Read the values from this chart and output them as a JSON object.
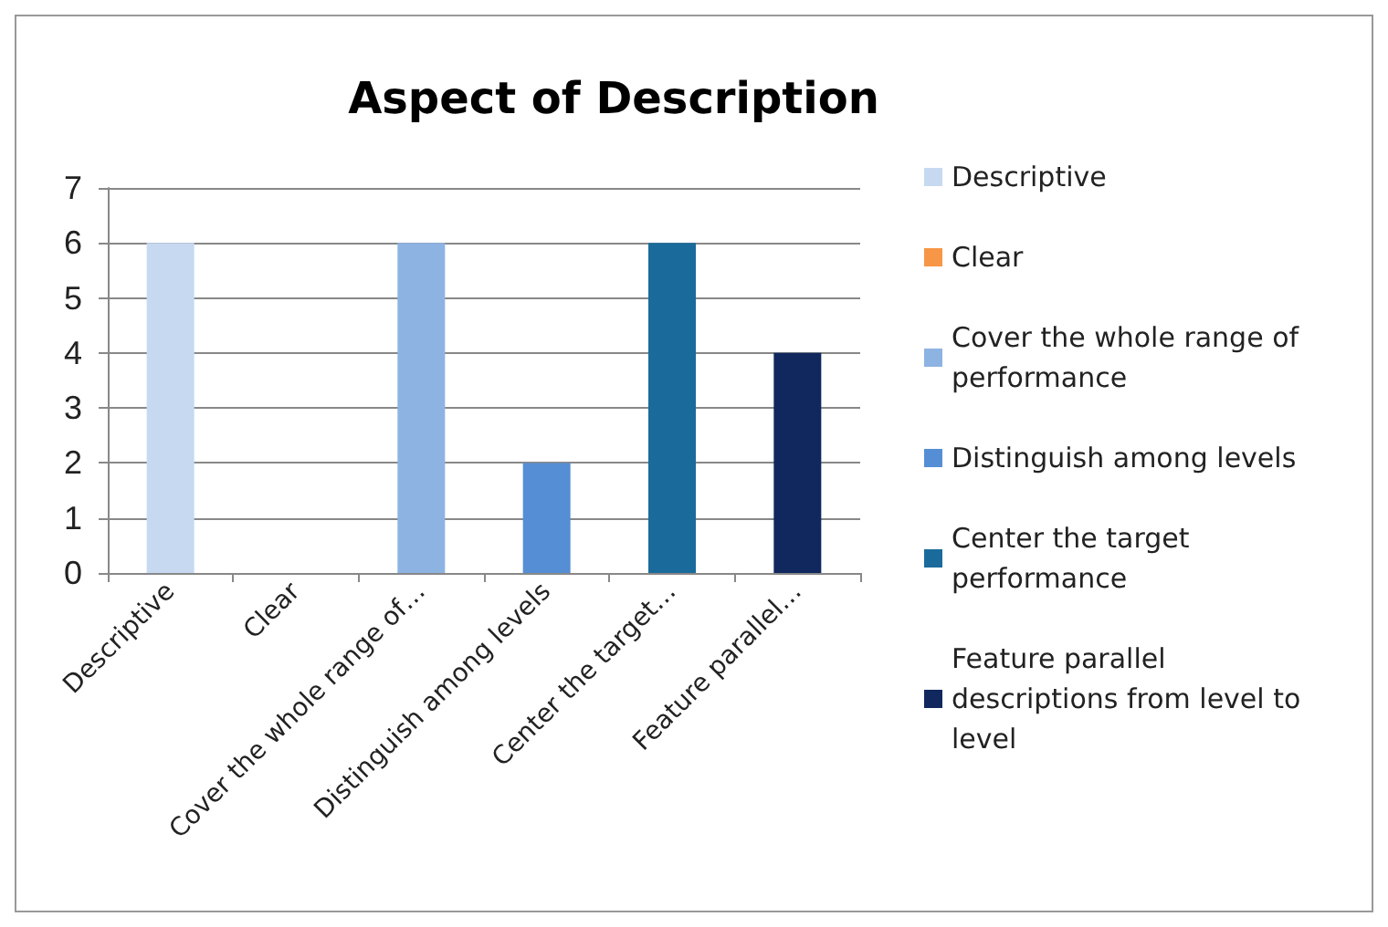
{
  "chart_data": {
    "type": "bar",
    "title": "Aspect of Description",
    "categories": [
      "Descriptive",
      "Clear",
      "Cover the whole range of…",
      "Distinguish among levels",
      "Center the target…",
      "Feature parallel…"
    ],
    "series": [
      {
        "name": "Descriptive",
        "color": "#c6d9f1",
        "values": [
          6,
          null,
          null,
          null,
          null,
          null
        ]
      },
      {
        "name": "Clear",
        "color": "#f79646",
        "values": [
          null,
          0,
          null,
          null,
          null,
          null
        ]
      },
      {
        "name": "Cover the whole range of performance",
        "color": "#8db3e2",
        "values": [
          null,
          null,
          6,
          null,
          null,
          null
        ]
      },
      {
        "name": "Distinguish among levels",
        "color": "#558ed5",
        "values": [
          null,
          null,
          null,
          2,
          null,
          null
        ]
      },
      {
        "name": "Center the target performance",
        "color": "#1a6b9c",
        "values": [
          null,
          null,
          null,
          null,
          6,
          null
        ]
      },
      {
        "name": "Feature parallel descriptions from level to level",
        "color": "#10285e",
        "values": [
          null,
          null,
          null,
          null,
          null,
          4
        ]
      }
    ],
    "ylim": [
      0,
      7
    ],
    "yticks": [
      0,
      1,
      2,
      3,
      4,
      5,
      6,
      7
    ],
    "grid": "y",
    "legend": "right"
  }
}
